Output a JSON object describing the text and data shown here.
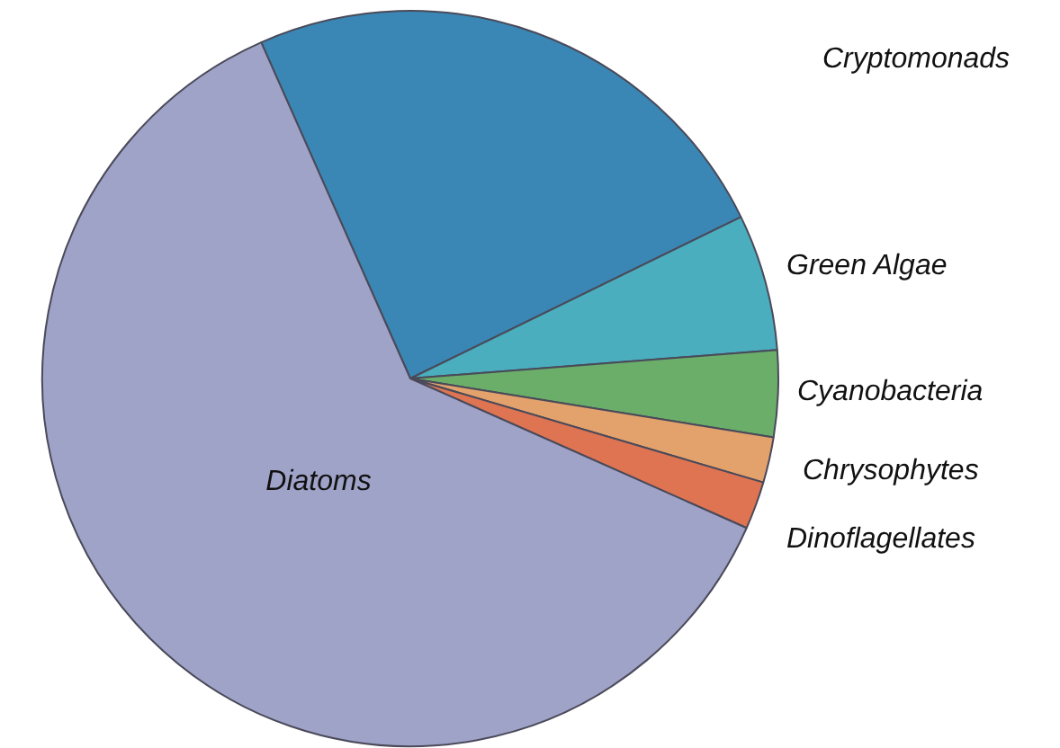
{
  "chart_data": {
    "type": "pie",
    "categories": [
      "Cryptomonads",
      "Green Algae",
      "Cyanobacteria",
      "Chrysophytes",
      "Dinoflagellates",
      "Diatoms"
    ],
    "values": [
      24.4,
      6.0,
      3.8,
      2.0,
      2.1,
      61.7
    ],
    "colors": [
      "#3a87b5",
      "#4aaebe",
      "#6aae6a",
      "#e3a26c",
      "#de7452",
      "#a0a3c8"
    ]
  }
}
